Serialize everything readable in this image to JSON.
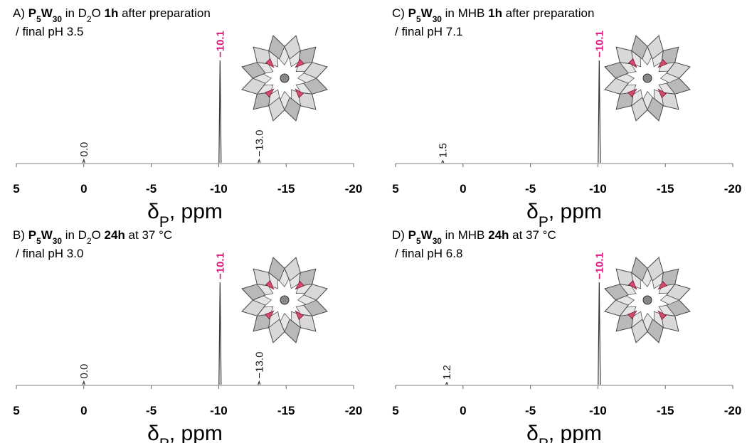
{
  "chart_data": [
    {
      "type": "spectrum",
      "title": [
        {
          "text": "A) "
        },
        {
          "text": "P",
          "bold": true
        },
        {
          "text": "5",
          "bold": true,
          "sub": true
        },
        {
          "text": "W",
          "bold": true
        },
        {
          "text": "30",
          "bold": true,
          "sub": true
        },
        {
          "text": " in D"
        },
        {
          "text": "2",
          "sub": true
        },
        {
          "text": "O "
        },
        {
          "text": "1h",
          "bold": true
        },
        {
          "text": " after preparation"
        }
      ],
      "subtitle": "/ final pH 3.5",
      "x_label": [
        {
          "text": "δ"
        },
        {
          "text": "P",
          "sub": true
        },
        {
          "text": ", ppm"
        }
      ],
      "xlim": [
        5,
        -20
      ],
      "xticks": [
        5,
        0,
        -5,
        -10,
        -15,
        -20
      ],
      "ylim": [
        0,
        100
      ],
      "color": "#333333",
      "peaks": {
        "x": [
          0.0,
          -10.1,
          -13.0
        ],
        "values": [
          3,
          96,
          3
        ],
        "x_labels": [
          "0.0",
          "−10.1",
          "−13.0"
        ],
        "label_colors": [
          "#222222",
          "#e0157a",
          "#222222"
        ],
        "label_bold": [
          false,
          true,
          false
        ]
      }
    },
    {
      "type": "spectrum",
      "title": [
        {
          "text": "B) "
        },
        {
          "text": "P",
          "bold": true
        },
        {
          "text": "5",
          "bold": true,
          "sub": true
        },
        {
          "text": "W",
          "bold": true
        },
        {
          "text": "30",
          "bold": true,
          "sub": true
        },
        {
          "text": " in D"
        },
        {
          "text": "2",
          "sub": true
        },
        {
          "text": "O "
        },
        {
          "text": "24h",
          "bold": true
        },
        {
          "text": " at 37 °C"
        }
      ],
      "subtitle": "/ final pH 3.0",
      "x_label": [
        {
          "text": "δ"
        },
        {
          "text": "P",
          "sub": true
        },
        {
          "text": ", ppm"
        }
      ],
      "xlim": [
        5,
        -20
      ],
      "xticks": [
        5,
        0,
        -5,
        -10,
        -15,
        -20
      ],
      "ylim": [
        0,
        100
      ],
      "color": "#333333",
      "peaks": {
        "x": [
          0.0,
          -10.1,
          -13.0
        ],
        "values": [
          3,
          96,
          3
        ],
        "x_labels": [
          "0.0",
          "−10.1",
          "−13.0"
        ],
        "label_colors": [
          "#222222",
          "#e0157a",
          "#222222"
        ],
        "label_bold": [
          false,
          true,
          false
        ]
      }
    },
    {
      "type": "spectrum",
      "title": [
        {
          "text": "C) "
        },
        {
          "text": "P",
          "bold": true
        },
        {
          "text": "5",
          "bold": true,
          "sub": true
        },
        {
          "text": "W",
          "bold": true
        },
        {
          "text": "30",
          "bold": true,
          "sub": true
        },
        {
          "text": " in MHB "
        },
        {
          "text": "1h",
          "bold": true
        },
        {
          "text": " after preparation"
        }
      ],
      "subtitle": "/ final pH 7.1",
      "x_label": [
        {
          "text": "δ"
        },
        {
          "text": "P",
          "sub": true
        },
        {
          "text": ", ppm"
        }
      ],
      "xlim": [
        5,
        -20
      ],
      "xticks": [
        5,
        0,
        -5,
        -10,
        -15,
        -20
      ],
      "ylim": [
        0,
        100
      ],
      "color": "#333333",
      "peaks": {
        "x": [
          1.5,
          -10.1
        ],
        "values": [
          2,
          96
        ],
        "x_labels": [
          "1.5",
          "−10.1"
        ],
        "label_colors": [
          "#222222",
          "#e0157a"
        ],
        "label_bold": [
          false,
          true
        ]
      }
    },
    {
      "type": "spectrum",
      "title": [
        {
          "text": "D) "
        },
        {
          "text": "P",
          "bold": true
        },
        {
          "text": "5",
          "bold": true,
          "sub": true
        },
        {
          "text": "W",
          "bold": true
        },
        {
          "text": "30",
          "bold": true,
          "sub": true
        },
        {
          "text": " in MHB "
        },
        {
          "text": "24h",
          "bold": true
        },
        {
          "text": " at 37 °C"
        }
      ],
      "subtitle": "/ final pH 6.8",
      "x_label": [
        {
          "text": "δ"
        },
        {
          "text": "P",
          "sub": true
        },
        {
          "text": ", ppm"
        }
      ],
      "xlim": [
        5,
        -20
      ],
      "xticks": [
        5,
        0,
        -5,
        -10,
        -15,
        -20
      ],
      "ylim": [
        0,
        100
      ],
      "color": "#333333",
      "peaks": {
        "x": [
          1.2,
          -10.1
        ],
        "values": [
          2,
          96
        ],
        "x_labels": [
          "1.2",
          "−10.1"
        ],
        "label_colors": [
          "#222222",
          "#e0157a"
        ],
        "label_bold": [
          false,
          true
        ]
      }
    }
  ]
}
